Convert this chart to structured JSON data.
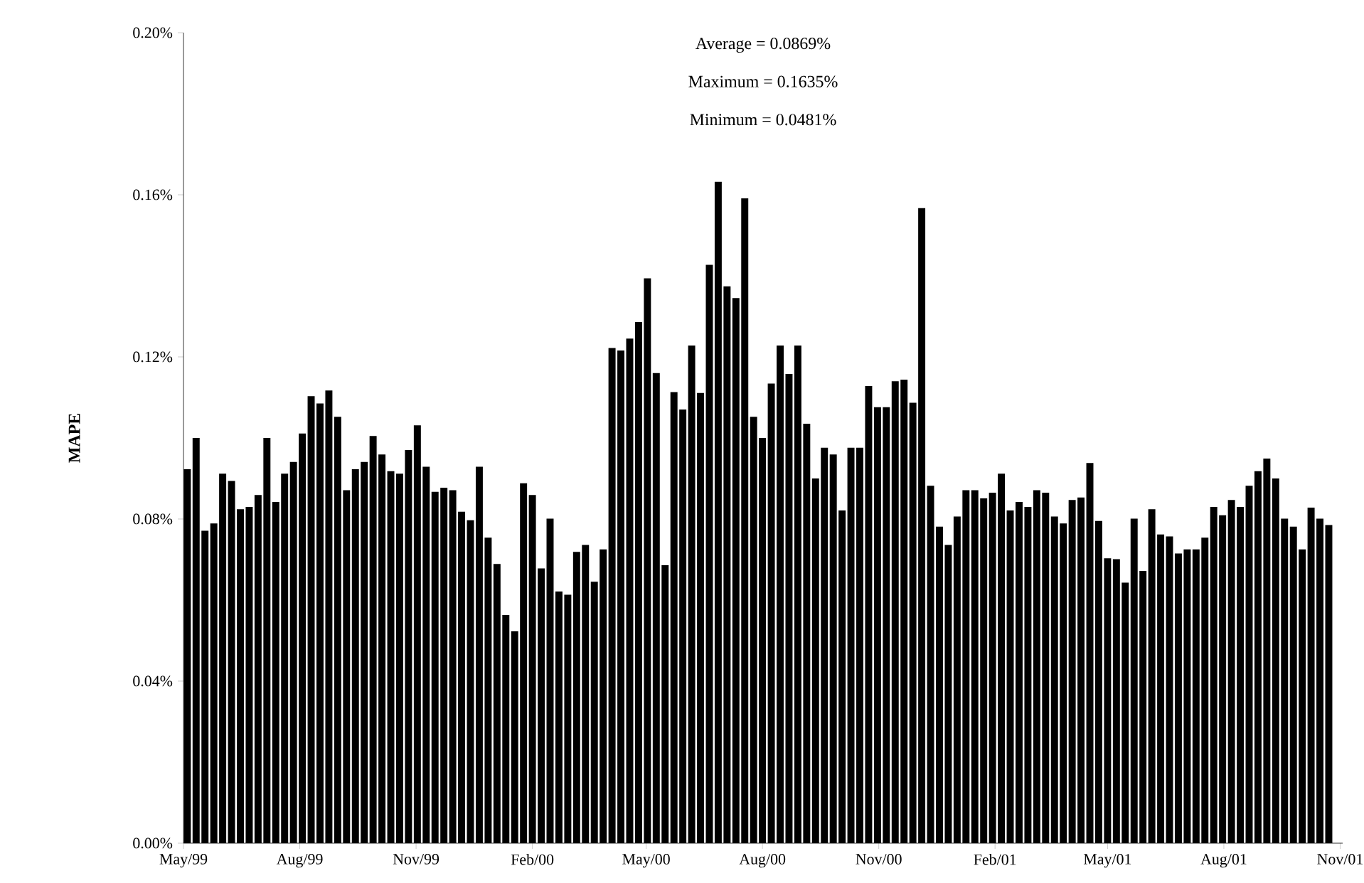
{
  "chart_data": {
    "type": "bar",
    "ylabel": "MAPE",
    "color": "#000000",
    "annotations": [
      "Average = 0.0869%",
      "Maximum = 0.1635%",
      "Minimum = 0.0481%"
    ],
    "x": [
      "1999-05-04",
      "1999-05-11",
      "1999-05-18",
      "1999-05-25",
      "1999-06-01",
      "1999-06-08",
      "1999-06-15",
      "1999-06-22",
      "1999-06-29",
      "1999-07-06",
      "1999-07-13",
      "1999-07-20",
      "1999-07-27",
      "1999-08-03",
      "1999-08-10",
      "1999-08-17",
      "1999-08-24",
      "1999-08-31",
      "1999-09-07",
      "1999-09-14",
      "1999-09-21",
      "1999-09-28",
      "1999-10-05",
      "1999-10-12",
      "1999-10-19",
      "1999-10-26",
      "1999-11-02",
      "1999-11-09",
      "1999-11-16",
      "1999-11-23",
      "1999-11-30",
      "1999-12-07",
      "1999-12-14",
      "1999-12-21",
      "1999-12-28",
      "2000-01-04",
      "2000-01-11",
      "2000-01-18",
      "2000-01-25",
      "2000-02-01",
      "2000-02-08",
      "2000-02-15",
      "2000-02-22",
      "2000-02-29",
      "2000-03-07",
      "2000-03-14",
      "2000-03-21",
      "2000-03-28",
      "2000-04-04",
      "2000-04-11",
      "2000-04-18",
      "2000-04-25",
      "2000-05-02",
      "2000-05-09",
      "2000-05-16",
      "2000-05-23",
      "2000-05-30",
      "2000-06-06",
      "2000-06-13",
      "2000-06-20",
      "2000-06-27",
      "2000-07-04",
      "2000-07-11",
      "2000-07-18",
      "2000-07-25",
      "2000-08-01",
      "2000-08-08",
      "2000-08-15",
      "2000-08-22",
      "2000-08-29",
      "2000-09-05",
      "2000-09-12",
      "2000-09-19",
      "2000-09-26",
      "2000-10-03",
      "2000-10-10",
      "2000-10-17",
      "2000-10-24",
      "2000-10-31",
      "2000-11-07",
      "2000-11-14",
      "2000-11-21",
      "2000-11-28",
      "2000-12-05",
      "2000-12-12",
      "2000-12-19",
      "2000-12-26",
      "2001-01-02",
      "2001-01-09",
      "2001-01-16",
      "2001-01-23",
      "2001-01-30",
      "2001-02-06",
      "2001-02-13",
      "2001-02-20",
      "2001-02-27",
      "2001-03-06",
      "2001-03-13",
      "2001-03-20",
      "2001-03-27",
      "2001-04-03",
      "2001-04-10",
      "2001-04-17",
      "2001-04-24",
      "2001-05-01",
      "2001-05-08",
      "2001-05-15",
      "2001-05-22",
      "2001-05-29",
      "2001-06-05",
      "2001-06-12",
      "2001-06-19",
      "2001-06-26",
      "2001-07-03",
      "2001-07-10",
      "2001-07-17",
      "2001-07-24",
      "2001-07-31",
      "2001-08-07",
      "2001-08-14",
      "2001-08-21",
      "2001-08-28",
      "2001-09-04",
      "2001-09-11",
      "2001-09-18",
      "2001-09-25",
      "2001-10-02",
      "2001-10-09",
      "2001-10-16",
      "2001-10-23"
    ],
    "values": [
      0.0923,
      0.1,
      0.0771,
      0.0789,
      0.0912,
      0.0894,
      0.0824,
      0.083,
      0.0859,
      0.1,
      0.0842,
      0.0912,
      0.0941,
      0.1011,
      0.1103,
      0.1085,
      0.1117,
      0.1052,
      0.0871,
      0.0923,
      0.0941,
      0.1005,
      0.0959,
      0.0918,
      0.0912,
      0.097,
      0.1031,
      0.0929,
      0.0867,
      0.0877,
      0.0871,
      0.0818,
      0.0797,
      0.0929,
      0.0754,
      0.0689,
      0.0563,
      0.0523,
      0.0888,
      0.0859,
      0.0678,
      0.0801,
      0.0621,
      0.0613,
      0.0719,
      0.0736,
      0.0645,
      0.0725,
      0.1222,
      0.1216,
      0.1245,
      0.1286,
      0.1394,
      0.116,
      0.0686,
      0.1113,
      0.107,
      0.1228,
      0.1111,
      0.1427,
      0.1632,
      0.1374,
      0.1345,
      0.1591,
      0.1052,
      0.1,
      0.1134,
      0.1228,
      0.1158,
      0.1228,
      0.1035,
      0.09,
      0.0976,
      0.0959,
      0.0821,
      0.0976,
      0.0976,
      0.1128,
      0.1076,
      0.1076,
      0.114,
      0.1144,
      0.1087,
      0.1567,
      0.0882,
      0.0781,
      0.0736,
      0.0806,
      0.0871,
      0.0871,
      0.0851,
      0.0865,
      0.0912,
      0.0821,
      0.0842,
      0.083,
      0.0871,
      0.0865,
      0.0806,
      0.0789,
      0.0847,
      0.0853,
      0.0938,
      0.0795,
      0.0703,
      0.0701,
      0.0643,
      0.0801,
      0.0672,
      0.0824,
      0.0762,
      0.0757,
      0.0715,
      0.0725,
      0.0725,
      0.0754,
      0.083,
      0.0809,
      0.0847,
      0.083,
      0.0882,
      0.0918,
      0.0949,
      0.09,
      0.0801,
      0.0781,
      0.0725,
      0.0828,
      0.0801,
      0.0785
    ],
    "xlim": [
      "1999-05-01",
      "2001-11-03"
    ],
    "ylim": [
      0,
      0.2
    ],
    "xticks": [
      {
        "value": "1999-05-01",
        "label": "May/99"
      },
      {
        "value": "1999-08-01",
        "label": "Aug/99"
      },
      {
        "value": "1999-11-01",
        "label": "Nov/99"
      },
      {
        "value": "2000-02-01",
        "label": "Feb/00"
      },
      {
        "value": "2000-05-01",
        "label": "May/00"
      },
      {
        "value": "2000-08-01",
        "label": "Aug/00"
      },
      {
        "value": "2000-11-01",
        "label": "Nov/00"
      },
      {
        "value": "2001-02-01",
        "label": "Feb/01"
      },
      {
        "value": "2001-05-01",
        "label": "May/01"
      },
      {
        "value": "2001-08-01",
        "label": "Aug/01"
      },
      {
        "value": "2001-11-01",
        "label": "Nov/01"
      }
    ],
    "yticks": [
      {
        "value": 0,
        "label": "0.00%"
      },
      {
        "value": 0.04,
        "label": "0.04%"
      },
      {
        "value": 0.08,
        "label": "0.08%"
      },
      {
        "value": 0.12,
        "label": "0.12%"
      },
      {
        "value": 0.16,
        "label": "0.16%"
      },
      {
        "value": 0.2,
        "label": "0.20%"
      }
    ]
  }
}
